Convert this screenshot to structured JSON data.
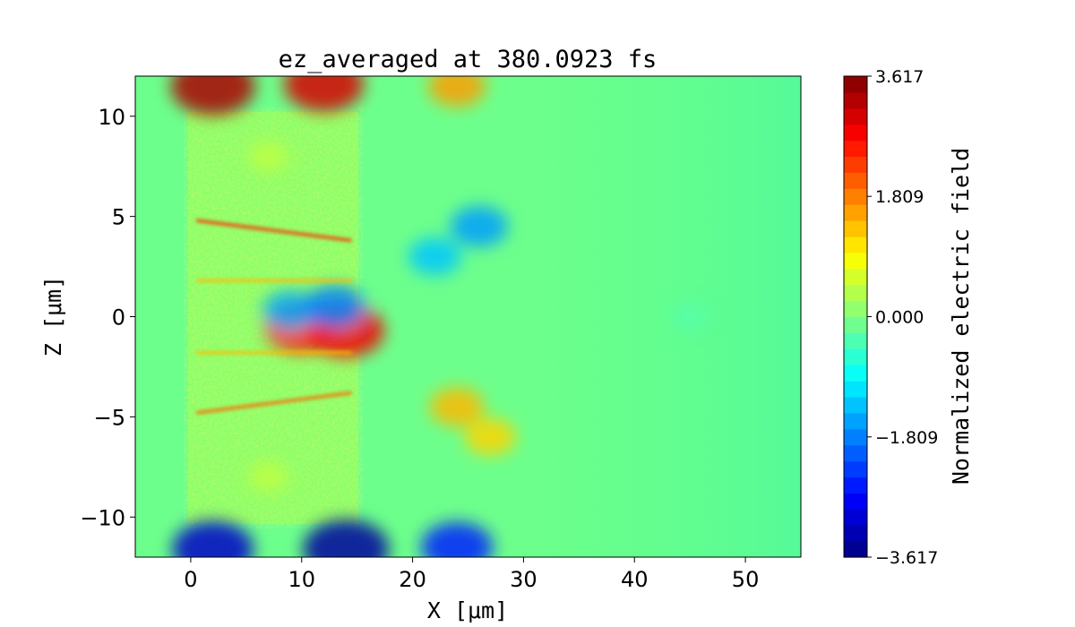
{
  "chart_data": {
    "type": "heatmap",
    "title": "ez_averaged at 380.0923 fs",
    "xlabel": "X [μm]",
    "ylabel": "Z [μm]",
    "xlim": [
      -5,
      55
    ],
    "ylim": [
      -12,
      12
    ],
    "x_ticks": [
      {
        "value": 0,
        "label": "0"
      },
      {
        "value": 10,
        "label": "10"
      },
      {
        "value": 20,
        "label": "20"
      },
      {
        "value": 30,
        "label": "30"
      },
      {
        "value": 40,
        "label": "40"
      },
      {
        "value": 50,
        "label": "50"
      }
    ],
    "y_ticks": [
      {
        "value": -10,
        "label": "−10"
      },
      {
        "value": -5,
        "label": "−5"
      },
      {
        "value": 0,
        "label": "0"
      },
      {
        "value": 5,
        "label": "5"
      },
      {
        "value": 10,
        "label": "10"
      }
    ],
    "colormap": "jet",
    "colorbar": {
      "label": "Normalized electric field",
      "range": [
        -3.617,
        3.617
      ],
      "ticks": [
        {
          "value": 3.617,
          "label": "3.617"
        },
        {
          "value": 1.809,
          "label": "1.809"
        },
        {
          "value": 0.0,
          "label": "0.000"
        },
        {
          "value": -1.809,
          "label": "−1.809"
        },
        {
          "value": -3.617,
          "label": "−3.617"
        }
      ],
      "levels": 30
    },
    "grid": false,
    "features": [
      {
        "x": 2,
        "z": 11.5,
        "value": 3.3
      },
      {
        "x": 12,
        "z": 11.6,
        "value": 3.0
      },
      {
        "x": 24,
        "z": 11.5,
        "value": 1.6
      },
      {
        "x": 2,
        "z": -11.6,
        "value": -3.1
      },
      {
        "x": 14,
        "z": -11.6,
        "value": -3.4
      },
      {
        "x": 24,
        "z": -11.5,
        "value": -2.5
      },
      {
        "x": 26,
        "z": 4.5,
        "value": -1.6
      },
      {
        "x": 22,
        "z": 3.0,
        "value": -1.3
      },
      {
        "x": 24,
        "z": -4.5,
        "value": 1.4
      },
      {
        "x": 27,
        "z": -6.0,
        "value": 1.2
      },
      {
        "x": 10,
        "z": -0.5,
        "value": 2.6
      },
      {
        "x": 14,
        "z": -0.7,
        "value": 2.8
      },
      {
        "x": 9,
        "z": 0.3,
        "value": -1.5
      },
      {
        "x": 13,
        "z": 0.5,
        "value": -1.8
      },
      {
        "x": 7,
        "z": 8.0,
        "value": 0.45
      },
      {
        "x": 7,
        "z": -8.0,
        "value": 0.45
      },
      {
        "x": 45,
        "z": 0,
        "value": -0.3
      }
    ],
    "lines": [
      {
        "x1": 0.5,
        "z1": 4.8,
        "x2": 14.5,
        "z2": 3.8,
        "value": 2.4
      },
      {
        "x1": 0.5,
        "z1": -4.8,
        "x2": 14.5,
        "z2": -3.8,
        "value": 2.0
      },
      {
        "x1": 0.5,
        "z1": 1.8,
        "x2": 14.5,
        "z2": 1.8,
        "value": 1.4
      },
      {
        "x1": 0.5,
        "z1": -1.8,
        "x2": 14.5,
        "z2": -1.8,
        "value": 1.4
      }
    ]
  }
}
